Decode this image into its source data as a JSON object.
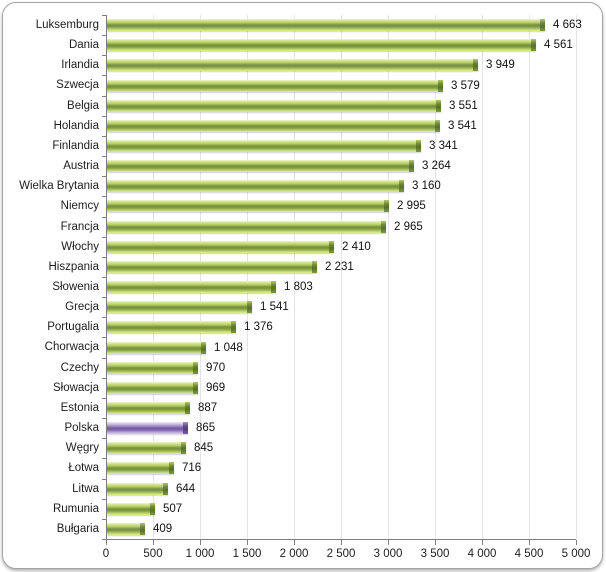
{
  "chart_data": {
    "type": "bar",
    "orientation": "horizontal",
    "title": "",
    "xlabel": "",
    "ylabel": "",
    "xlim": [
      0,
      5000
    ],
    "grid": true,
    "legend": "none",
    "categories": [
      "Luksemburg",
      "Dania",
      "Irlandia",
      "Szwecja",
      "Belgia",
      "Holandia",
      "Finlandia",
      "Austria",
      "Wielka Brytania",
      "Niemcy",
      "Francja",
      "Włochy",
      "Hiszpania",
      "Słowenia",
      "Grecja",
      "Portugalia",
      "Chorwacja",
      "Czechy",
      "Słowacja",
      "Estonia",
      "Polska",
      "Węgry",
      "Łotwa",
      "Litwa",
      "Rumunia",
      "Bułgaria"
    ],
    "values": [
      4663,
      4561,
      3949,
      3579,
      3551,
      3541,
      3341,
      3264,
      3160,
      2995,
      2965,
      2410,
      2231,
      1803,
      1541,
      1376,
      1048,
      970,
      969,
      887,
      865,
      845,
      716,
      644,
      507,
      409
    ],
    "value_labels": [
      "4 663",
      "4 561",
      "3 949",
      "3 579",
      "3 551",
      "3 541",
      "3 341",
      "3 264",
      "3 160",
      "2 995",
      "2 965",
      "2 410",
      "2 231",
      "1 803",
      "1 541",
      "1 376",
      "1 048",
      "970",
      "969",
      "887",
      "865",
      "845",
      "716",
      "644",
      "507",
      "409"
    ],
    "highlight_category": "Polska",
    "x_ticks": [
      0,
      500,
      1000,
      1500,
      2000,
      2500,
      3000,
      3500,
      4000,
      4500,
      5000
    ],
    "x_tick_labels": [
      "0",
      "500",
      "1 000",
      "1 500",
      "2 000",
      "2 500",
      "3 000",
      "3 500",
      "4 000",
      "4 500",
      "5 000"
    ],
    "colors": {
      "bar_green": "#87a23e",
      "bar_green_light": "#cee183",
      "bar_green_cap": "#5f7a2e",
      "bar_purple": "#7c64aa",
      "bar_purple_light": "#cec2e6",
      "bar_purple_cap": "#54418a",
      "gridline": "#e4e4e4",
      "axis": "#7f7f7f",
      "text": "#1d1d1d",
      "frame_border": "#a3a3a3",
      "background": "#ffffff"
    }
  }
}
